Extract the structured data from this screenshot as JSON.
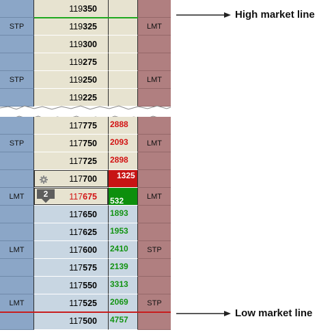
{
  "callouts": {
    "high": "High market line",
    "low": "Low market line"
  },
  "colors": {
    "stop_column": "#8ba6c7",
    "limit_column": "#b07f80",
    "above_market_bg": "#e7e3d0",
    "below_market_bg": "#c8d6e2",
    "high_market_line": "#1da81d",
    "low_market_line": "#c81c1c",
    "ask_volume": "#d21212",
    "bid_volume": "#129312"
  },
  "top_rows": [
    {
      "price_main": "119",
      "price_tail": "350",
      "left": "",
      "right": "",
      "vol": ""
    },
    {
      "price_main": "119",
      "price_tail": "325",
      "left": "STP",
      "right": "LMT",
      "vol": ""
    },
    {
      "price_main": "119",
      "price_tail": "300",
      "left": "",
      "right": "",
      "vol": ""
    },
    {
      "price_main": "119",
      "price_tail": "275",
      "left": "",
      "right": "",
      "vol": ""
    },
    {
      "price_main": "119",
      "price_tail": "250",
      "left": "STP",
      "right": "LMT",
      "vol": ""
    },
    {
      "price_main": "119",
      "price_tail": "225",
      "left": "",
      "right": "",
      "vol": ""
    }
  ],
  "bottom_rows": [
    {
      "price_main": "117",
      "price_tail": "775",
      "left": "",
      "right": "",
      "vol": "2888",
      "zone": "above",
      "vol_color": "red"
    },
    {
      "price_main": "117",
      "price_tail": "750",
      "left": "STP",
      "right": "LMT",
      "vol": "2093",
      "zone": "above",
      "vol_color": "red"
    },
    {
      "price_main": "117",
      "price_tail": "725",
      "left": "",
      "right": "",
      "vol": "2898",
      "zone": "above",
      "vol_color": "red"
    },
    {
      "price_main": "117",
      "price_tail": "700",
      "left": "",
      "right": "",
      "vol": "1325",
      "zone": "above",
      "vol_color": "hl-red"
    },
    {
      "price_main": "117",
      "price_tail": "675",
      "left": "LMT",
      "right": "LMT",
      "vol": "532",
      "zone": "below",
      "vol_color": "hl-green"
    },
    {
      "price_main": "117",
      "price_tail": "650",
      "left": "",
      "right": "",
      "vol": "1893",
      "zone": "below",
      "vol_color": "green"
    },
    {
      "price_main": "117",
      "price_tail": "625",
      "left": "",
      "right": "",
      "vol": "1953",
      "zone": "below",
      "vol_color": "green"
    },
    {
      "price_main": "117",
      "price_tail": "600",
      "left": "LMT",
      "right": "STP",
      "vol": "2410",
      "zone": "below",
      "vol_color": "green"
    },
    {
      "price_main": "117",
      "price_tail": "575",
      "left": "",
      "right": "",
      "vol": "2139",
      "zone": "below",
      "vol_color": "green"
    },
    {
      "price_main": "117",
      "price_tail": "550",
      "left": "",
      "right": "",
      "vol": "3313",
      "zone": "below",
      "vol_color": "green"
    },
    {
      "price_main": "117",
      "price_tail": "525",
      "left": "LMT",
      "right": "STP",
      "vol": "2069",
      "zone": "below",
      "vol_color": "green"
    },
    {
      "price_main": "117",
      "price_tail": "500",
      "left": "",
      "right": "",
      "vol": "4757",
      "zone": "below",
      "vol_color": "green"
    }
  ],
  "position": {
    "quantity": "2",
    "selected_icon": "gear-icon"
  }
}
